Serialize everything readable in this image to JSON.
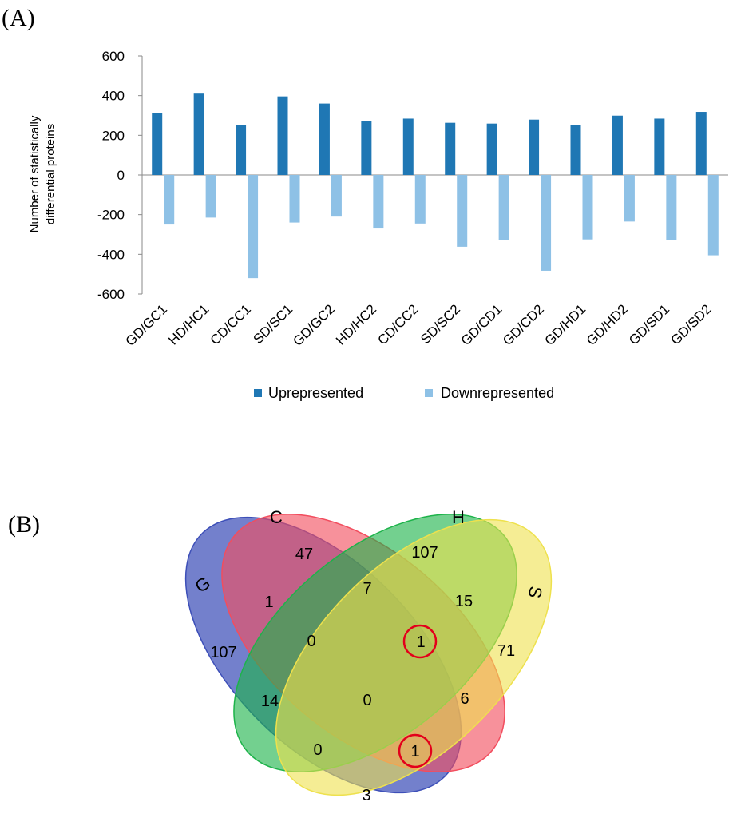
{
  "panel_a_label": "(A)",
  "panel_b_label": "(B)",
  "colors": {
    "up": "#1f77b4",
    "down": "#8ec1e6",
    "G": "#3d4fb8",
    "C": "#f24d5e",
    "H": "#1db34a",
    "S": "#eee14d",
    "highlight": "#e3001b"
  },
  "chart_data": {
    "type": "bar",
    "title": "",
    "xlabel": "",
    "ylabel": "Number of statistically differential proteins",
    "ylabel_lines": [
      "Number of statistically",
      "differential proteins"
    ],
    "ylim": [
      -600,
      600
    ],
    "yticks": [
      600,
      400,
      200,
      0,
      -200,
      -400,
      -600
    ],
    "ytick_labels": [
      "600",
      "400",
      "200",
      "0",
      "-200",
      "-400",
      "-600"
    ],
    "grid": false,
    "legend_position": "bottom-center",
    "categories": [
      "GD/GC1",
      "HD/HC1",
      "CD/CC1",
      "SD/SC1",
      "GD/GC2",
      "HD/HC2",
      "CD/CC2",
      "SD/SC2",
      "GD/CD1",
      "GD/CD2",
      "GD/HD1",
      "GD/HD2",
      "GD/SD1",
      "GD/SD2"
    ],
    "series": [
      {
        "name": "Uprepresented",
        "values": [
          313,
          410,
          253,
          396,
          360,
          271,
          284,
          263,
          259,
          279,
          250,
          299,
          284,
          318
        ]
      },
      {
        "name": "Downrepresented",
        "values": [
          -250,
          -215,
          -520,
          -240,
          -210,
          -270,
          -245,
          -362,
          -330,
          -483,
          -325,
          -235,
          -330,
          -405
        ]
      }
    ]
  },
  "venn": {
    "set_labels": {
      "G": "G",
      "C": "C",
      "H": "H",
      "S": "S"
    },
    "regions": {
      "C_only": "47",
      "H_only": "107",
      "G_only": "107",
      "S_only": "71",
      "GC": "1",
      "CH": "7",
      "HS": "15",
      "GCH": "0",
      "CHS": "1",
      "GH": "14",
      "GCHS": "0",
      "CS": "6",
      "GHS": "0",
      "GCS": "1",
      "GS": "3"
    }
  }
}
